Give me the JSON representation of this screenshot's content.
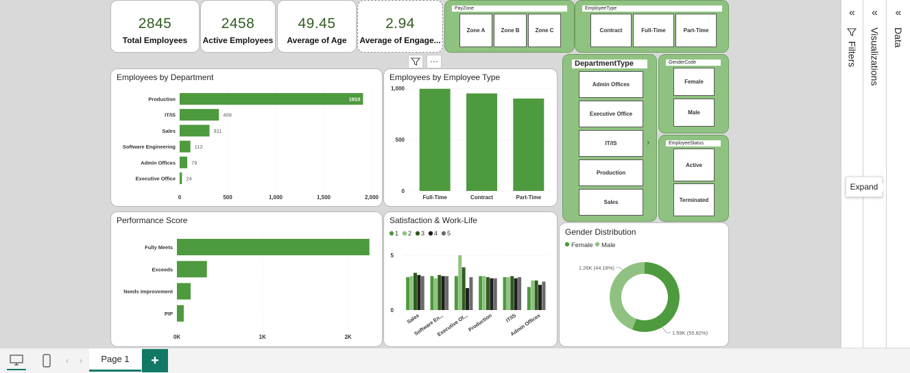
{
  "kpis": [
    {
      "value": "2845",
      "label": "Total Employees"
    },
    {
      "value": "2458",
      "label": "Active Employees"
    },
    {
      "value": "49.45",
      "label": "Average of Age"
    },
    {
      "value": "2.94",
      "label": "Average of Engage..."
    }
  ],
  "slicers": {
    "payzone": {
      "title": "PayZone",
      "items": [
        "Zone A",
        "Zone B",
        "Zone C"
      ]
    },
    "employeetype": {
      "title": "EmployeeType",
      "items": [
        "Contract",
        "Full-Time",
        "Part-Time"
      ]
    },
    "departmenttype": {
      "title": "DepartmentType",
      "items": [
        "Admin Offices",
        "Executive Office",
        "IT/IS",
        "Production",
        "Sales"
      ]
    },
    "gendercode": {
      "title": "GenderCode",
      "items": [
        "Female",
        "Male"
      ]
    },
    "employeestatus": {
      "title": "EmployeeStatus",
      "items": [
        "Active",
        "Terminated"
      ]
    }
  },
  "charts": {
    "by_department": {
      "title": "Employees by Department"
    },
    "by_type": {
      "title": "Employees by Employee Type"
    },
    "performance": {
      "title": "Performance Score"
    },
    "satisfaction": {
      "title": "Satisfaction & Work-Life"
    },
    "gender": {
      "title": "Gender Distribution"
    }
  },
  "chart_data": [
    {
      "type": "bar",
      "orientation": "horizontal",
      "title": "Employees by Department",
      "categories": [
        "Production",
        "IT/IS",
        "Sales",
        "Software Engineering",
        "Admin Offices",
        "Executive Office"
      ],
      "values": [
        1910,
        409,
        311,
        112,
        79,
        24
      ],
      "data_labels": [
        "1910",
        "409",
        "311",
        "112",
        "79",
        "24"
      ],
      "xticks": [
        "0",
        "500",
        "1,000",
        "1,500",
        "2,000"
      ],
      "xlim": [
        0,
        2000
      ],
      "color": "#4e9a3e"
    },
    {
      "type": "bar",
      "title": "Employees by Employee Type",
      "categories": [
        "Full-Time",
        "Contract",
        "Part-Time"
      ],
      "values": [
        995,
        950,
        900
      ],
      "yticks": [
        "0",
        "500",
        "1,000"
      ],
      "ylim": [
        0,
        1000
      ],
      "color": "#4e9a3e"
    },
    {
      "type": "bar",
      "orientation": "horizontal",
      "title": "Performance Score",
      "categories": [
        "Fully Meets",
        "Exceeds",
        "Needs Improvement",
        "PIP"
      ],
      "values": [
        2250,
        350,
        160,
        80
      ],
      "xticks": [
        "0K",
        "1K",
        "2K"
      ],
      "xlim": [
        0,
        2300
      ],
      "color": "#4e9a3e"
    },
    {
      "type": "bar",
      "title": "Satisfaction & Work-Life",
      "categories": [
        "Sales",
        "Software En...",
        "Executive Of...",
        "Production",
        "IT/IS",
        "Admin Offices"
      ],
      "yticks": [
        "0",
        "5"
      ],
      "ylim": [
        0,
        5
      ],
      "legend": "top-left",
      "series": [
        {
          "name": "1",
          "values": [
            3.0,
            3.1,
            3.1,
            3.1,
            3.0,
            2.1
          ],
          "color": "#4e9a3e"
        },
        {
          "name": "2",
          "values": [
            3.1,
            2.9,
            5.0,
            3.1,
            3.0,
            2.7
          ],
          "color": "#8fc280"
        },
        {
          "name": "3",
          "values": [
            3.4,
            3.2,
            3.9,
            3.0,
            3.1,
            2.7
          ],
          "color": "#2f5c20"
        },
        {
          "name": "4",
          "values": [
            3.2,
            3.1,
            2.0,
            2.9,
            2.9,
            2.3
          ],
          "color": "#1f1f1f"
        },
        {
          "name": "5",
          "values": [
            3.1,
            3.1,
            3.0,
            2.9,
            3.0,
            2.6
          ],
          "color": "#6b6b6b"
        }
      ]
    },
    {
      "type": "pie",
      "donut": true,
      "title": "Gender Distribution",
      "legend": "top-left",
      "labels": [
        "Female",
        "Male"
      ],
      "values": [
        1590,
        1260
      ],
      "percent": [
        55.82,
        44.18
      ],
      "data_labels": [
        "1.59K (55.82%)",
        "1.26K (44.18%)"
      ],
      "colors": [
        "#4e9a3e",
        "#8fc280"
      ]
    }
  ],
  "panes": {
    "filters": "Filters",
    "visualizations": "Visualizations",
    "data": "Data"
  },
  "tooltip": "Expand",
  "pages": {
    "current": "Page 1",
    "add": "+"
  }
}
